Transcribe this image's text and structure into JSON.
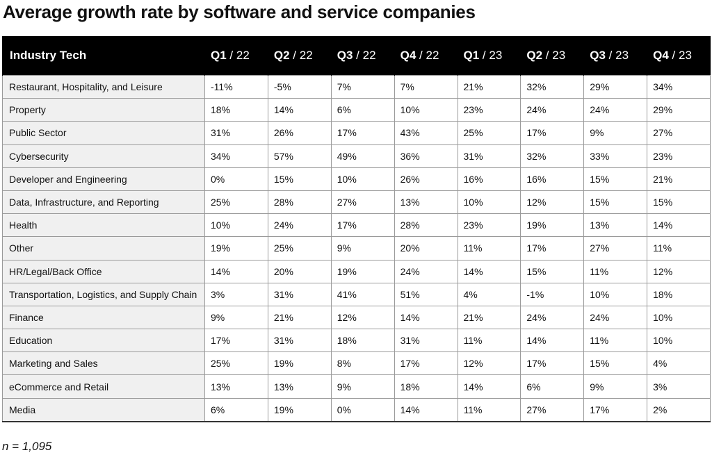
{
  "chart_data": {
    "type": "table",
    "title": "Average growth rate by software and service companies",
    "row_header_label": "Industry Tech",
    "columns": [
      {
        "quarter": "Q1",
        "year": "22"
      },
      {
        "quarter": "Q2",
        "year": "22"
      },
      {
        "quarter": "Q3",
        "year": "22"
      },
      {
        "quarter": "Q4",
        "year": "22"
      },
      {
        "quarter": "Q1",
        "year": "23"
      },
      {
        "quarter": "Q2",
        "year": "23"
      },
      {
        "quarter": "Q3",
        "year": "23"
      },
      {
        "quarter": "Q4",
        "year": "23"
      }
    ],
    "rows": [
      {
        "label": "Restaurant, Hospitality, and Leisure",
        "values": [
          "-11%",
          "-5%",
          "7%",
          "7%",
          "21%",
          "32%",
          "29%",
          "34%"
        ]
      },
      {
        "label": "Property",
        "values": [
          "18%",
          "14%",
          "6%",
          "10%",
          "23%",
          "24%",
          "24%",
          "29%"
        ]
      },
      {
        "label": "Public Sector",
        "values": [
          "31%",
          "26%",
          "17%",
          "43%",
          "25%",
          "17%",
          "9%",
          "27%"
        ]
      },
      {
        "label": "Cybersecurity",
        "values": [
          "34%",
          "57%",
          "49%",
          "36%",
          "31%",
          "32%",
          "33%",
          "23%"
        ]
      },
      {
        "label": "Developer and Engineering",
        "values": [
          "0%",
          "15%",
          "10%",
          "26%",
          "16%",
          "16%",
          "15%",
          "21%"
        ]
      },
      {
        "label": "Data, Infrastructure, and Reporting",
        "values": [
          "25%",
          "28%",
          "27%",
          "13%",
          "10%",
          "12%",
          "15%",
          "15%"
        ]
      },
      {
        "label": "Health",
        "values": [
          "10%",
          "24%",
          "17%",
          "28%",
          "23%",
          "19%",
          "13%",
          "14%"
        ]
      },
      {
        "label": "Other",
        "values": [
          "19%",
          "25%",
          "9%",
          "20%",
          "11%",
          "17%",
          "27%",
          "11%"
        ]
      },
      {
        "label": "HR/Legal/Back Office",
        "values": [
          "14%",
          "20%",
          "19%",
          "24%",
          "14%",
          "15%",
          "11%",
          "12%"
        ]
      },
      {
        "label": "Transportation, Logistics, and Supply Chain",
        "values": [
          "3%",
          "31%",
          "41%",
          "51%",
          "4%",
          "-1%",
          "10%",
          "18%"
        ]
      },
      {
        "label": "Finance",
        "values": [
          "9%",
          "21%",
          "12%",
          "14%",
          "21%",
          "24%",
          "24%",
          "10%"
        ]
      },
      {
        "label": "Education",
        "values": [
          "17%",
          "31%",
          "18%",
          "31%",
          "11%",
          "14%",
          "11%",
          "10%"
        ]
      },
      {
        "label": "Marketing and Sales",
        "values": [
          "25%",
          "19%",
          "8%",
          "17%",
          "12%",
          "17%",
          "15%",
          "4%"
        ]
      },
      {
        "label": "eCommerce and Retail",
        "values": [
          "13%",
          "13%",
          "9%",
          "18%",
          "14%",
          "6%",
          "9%",
          "3%"
        ]
      },
      {
        "label": "Media",
        "values": [
          "6%",
          "19%",
          "0%",
          "14%",
          "11%",
          "27%",
          "17%",
          "2%"
        ]
      }
    ],
    "footnote": "n = 1,095"
  }
}
